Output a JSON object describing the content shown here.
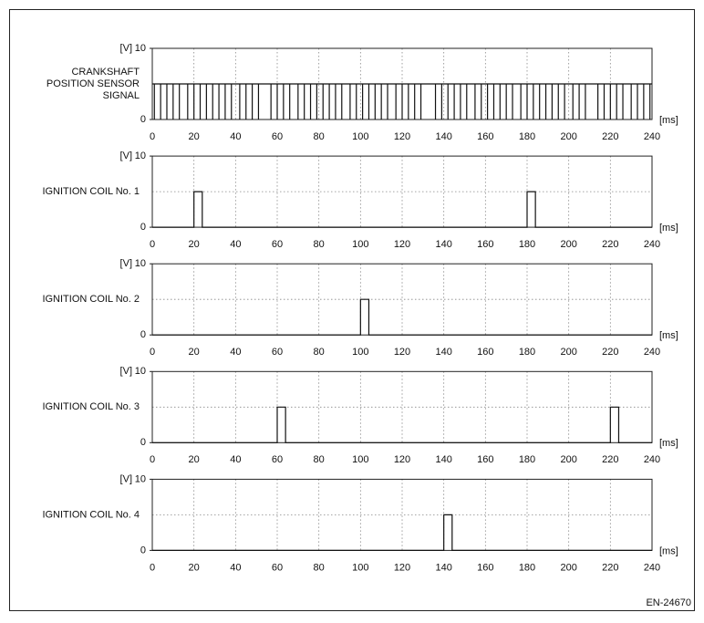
{
  "chart_data": [
    {
      "type": "pulse",
      "label_lines": [
        "CRANKSHAFT",
        "POSITION SENSOR",
        "SIGNAL"
      ],
      "y_unit": "[V]",
      "x_unit": "[ms]",
      "high": 5,
      "x": [
        1,
        4,
        7,
        10,
        13,
        17,
        20,
        23,
        26,
        29,
        32,
        35,
        38,
        42,
        45,
        48,
        51,
        57,
        60,
        63,
        66,
        70,
        73,
        76,
        79,
        82,
        85,
        88,
        91,
        95,
        98,
        101,
        104,
        107,
        110,
        113,
        117,
        120,
        123,
        126,
        129,
        136,
        139,
        142,
        145,
        148,
        151,
        155,
        158,
        161,
        164,
        167,
        170,
        173,
        177,
        180,
        183,
        186,
        189,
        192,
        195,
        198,
        202,
        205,
        208,
        214,
        217,
        220,
        223,
        226,
        230,
        233,
        236,
        239
      ],
      "values": [
        0,
        0,
        0,
        0,
        0,
        0,
        0,
        0,
        0,
        0,
        0,
        0,
        0,
        0,
        0,
        0,
        0,
        0,
        0,
        0,
        0,
        0,
        0,
        0,
        0,
        0,
        0,
        0,
        0,
        0,
        0,
        0,
        0,
        0,
        0,
        0,
        0,
        0,
        0,
        0,
        0,
        0,
        0,
        0,
        0,
        0,
        0,
        0,
        0,
        0,
        0,
        0,
        0,
        0,
        0,
        0,
        0,
        0,
        0,
        0,
        0,
        0,
        0,
        0,
        0,
        0,
        0,
        0,
        0,
        0,
        0,
        0,
        0,
        0
      ],
      "xlim": [
        0,
        240
      ],
      "ylim": [
        0,
        10
      ],
      "xticks": [
        0,
        20,
        40,
        60,
        80,
        100,
        120,
        140,
        160,
        180,
        200,
        220,
        240
      ],
      "yticks": [
        0,
        10
      ],
      "grid_y": [
        5
      ]
    },
    {
      "type": "line",
      "label": "IGNITION COIL No. 1",
      "y_unit": "[V]",
      "x_unit": "[ms]",
      "x": [
        0,
        20,
        20,
        24,
        24,
        180,
        180,
        184,
        184,
        240
      ],
      "values": [
        0,
        0,
        5,
        5,
        0,
        0,
        5,
        5,
        0,
        0
      ],
      "xlim": [
        0,
        240
      ],
      "ylim": [
        0,
        10
      ],
      "xticks": [
        0,
        20,
        40,
        60,
        80,
        100,
        120,
        140,
        160,
        180,
        200,
        220,
        240
      ],
      "yticks": [
        0,
        10
      ],
      "grid_y": [
        5
      ]
    },
    {
      "type": "line",
      "label": "IGNITION COIL No. 2",
      "y_unit": "[V]",
      "x_unit": "[ms]",
      "x": [
        0,
        100,
        100,
        104,
        104,
        240
      ],
      "values": [
        0,
        0,
        5,
        5,
        0,
        0
      ],
      "xlim": [
        0,
        240
      ],
      "ylim": [
        0,
        10
      ],
      "xticks": [
        0,
        20,
        40,
        60,
        80,
        100,
        120,
        140,
        160,
        180,
        200,
        220,
        240
      ],
      "yticks": [
        0,
        10
      ],
      "grid_y": [
        5
      ]
    },
    {
      "type": "line",
      "label": "IGNITION COIL No. 3",
      "y_unit": "[V]",
      "x_unit": "[ms]",
      "x": [
        0,
        60,
        60,
        64,
        64,
        220,
        220,
        224,
        224,
        240
      ],
      "values": [
        0,
        0,
        5,
        5,
        0,
        0,
        5,
        5,
        0,
        0
      ],
      "xlim": [
        0,
        240
      ],
      "ylim": [
        0,
        10
      ],
      "xticks": [
        0,
        20,
        40,
        60,
        80,
        100,
        120,
        140,
        160,
        180,
        200,
        220,
        240
      ],
      "yticks": [
        0,
        10
      ],
      "grid_y": [
        5
      ]
    },
    {
      "type": "line",
      "label": "IGNITION COIL No. 4",
      "y_unit": "[V]",
      "x_unit": "[ms]",
      "x": [
        0,
        140,
        140,
        144,
        144,
        240
      ],
      "values": [
        0,
        0,
        5,
        5,
        0,
        0
      ],
      "xlim": [
        0,
        240
      ],
      "ylim": [
        0,
        10
      ],
      "xticks": [
        0,
        20,
        40,
        60,
        80,
        100,
        120,
        140,
        160,
        180,
        200,
        220,
        240
      ],
      "yticks": [
        0,
        10
      ],
      "grid_y": [
        5
      ]
    }
  ],
  "footer": "EN-24670"
}
